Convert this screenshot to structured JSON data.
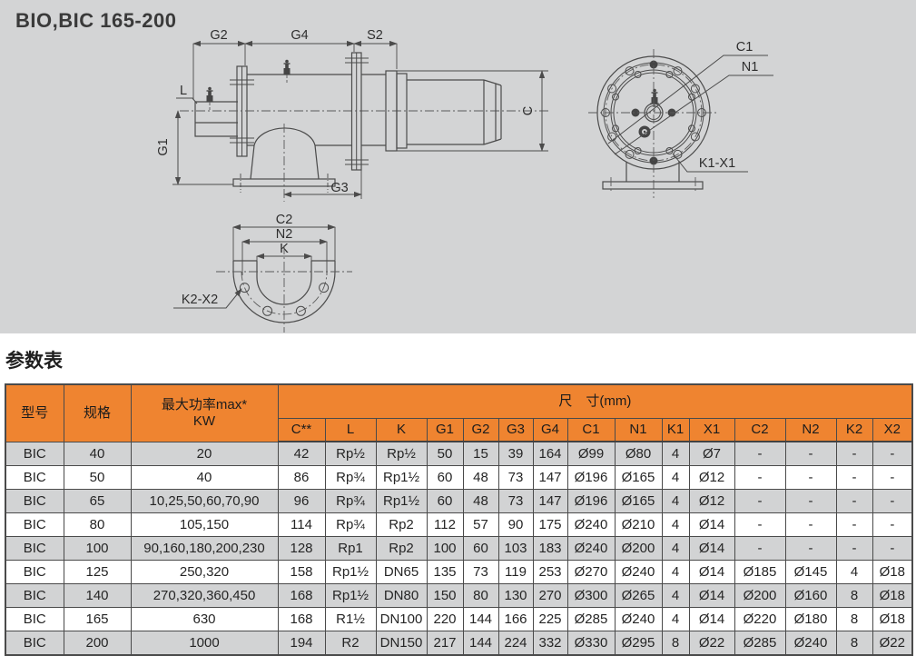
{
  "title": "BIO,BIC 165-200",
  "section_heading": "参数表",
  "diagram": {
    "labels": {
      "g2": "G2",
      "g4": "G4",
      "s2": "S2",
      "l": "L",
      "g1": "G1",
      "g3": "G3",
      "c": "C",
      "c1": "C1",
      "n1": "N1",
      "k1x1": "K1-X1",
      "c2": "C2",
      "n2": "N2",
      "k": "K",
      "k2x2": "K2-X2"
    }
  },
  "table": {
    "headers": {
      "model": "型号",
      "spec": "规格",
      "power_line1": "最大功率max*",
      "power_line2": "KW",
      "dims_group": "尺　寸(mm)",
      "dims": [
        "C**",
        "L",
        "K",
        "G1",
        "G2",
        "G3",
        "G4",
        "C1",
        "N1",
        "K1",
        "X1",
        "C2",
        "N2",
        "K2",
        "X2"
      ]
    },
    "rows": [
      {
        "model": "BIC",
        "spec": "40",
        "power": "20",
        "dims": [
          "42",
          "Rp½",
          "Rp½",
          "50",
          "15",
          "39",
          "164",
          "Ø99",
          "Ø80",
          "4",
          "Ø7",
          "-",
          "-",
          "-",
          "-"
        ]
      },
      {
        "model": "BIC",
        "spec": "50",
        "power": "40",
        "dims": [
          "86",
          "Rp¾",
          "Rp1½",
          "60",
          "48",
          "73",
          "147",
          "Ø196",
          "Ø165",
          "4",
          "Ø12",
          "-",
          "-",
          "-",
          "-"
        ]
      },
      {
        "model": "BIC",
        "spec": "65",
        "power": "10,25,50,60,70,90",
        "dims": [
          "96",
          "Rp¾",
          "Rp1½",
          "60",
          "48",
          "73",
          "147",
          "Ø196",
          "Ø165",
          "4",
          "Ø12",
          "-",
          "-",
          "-",
          "-"
        ]
      },
      {
        "model": "BIC",
        "spec": "80",
        "power": "105,150",
        "dims": [
          "114",
          "Rp¾",
          "Rp2",
          "112",
          "57",
          "90",
          "175",
          "Ø240",
          "Ø210",
          "4",
          "Ø14",
          "-",
          "-",
          "-",
          "-"
        ]
      },
      {
        "model": "BIC",
        "spec": "100",
        "power": "90,160,180,200,230",
        "dims": [
          "128",
          "Rp1",
          "Rp2",
          "100",
          "60",
          "103",
          "183",
          "Ø240",
          "Ø200",
          "4",
          "Ø14",
          "-",
          "-",
          "-",
          "-"
        ]
      },
      {
        "model": "BIC",
        "spec": "125",
        "power": "250,320",
        "dims": [
          "158",
          "Rp1½",
          "DN65",
          "135",
          "73",
          "119",
          "253",
          "Ø270",
          "Ø240",
          "4",
          "Ø14",
          "Ø185",
          "Ø145",
          "4",
          "Ø18"
        ]
      },
      {
        "model": "BIC",
        "spec": "140",
        "power": "270,320,360,450",
        "dims": [
          "168",
          "Rp1½",
          "DN80",
          "150",
          "80",
          "130",
          "270",
          "Ø300",
          "Ø265",
          "4",
          "Ø14",
          "Ø200",
          "Ø160",
          "8",
          "Ø18"
        ]
      },
      {
        "model": "BIC",
        "spec": "165",
        "power": "630",
        "dims": [
          "168",
          "R1½",
          "DN100",
          "220",
          "144",
          "166",
          "225",
          "Ø285",
          "Ø240",
          "4",
          "Ø14",
          "Ø220",
          "Ø180",
          "8",
          "Ø18"
        ]
      },
      {
        "model": "BIC",
        "spec": "200",
        "power": "1000",
        "dims": [
          "194",
          "R2",
          "DN150",
          "217",
          "144",
          "224",
          "332",
          "Ø330",
          "Ø295",
          "8",
          "Ø22",
          "Ø285",
          "Ø240",
          "8",
          "Ø22"
        ]
      }
    ]
  },
  "colors": {
    "header_orange": "#EF8430",
    "row_gray": "#D2D3D4",
    "row_white": "#FFFFFF",
    "panel_gray": "#D3D4D5",
    "line": "#4B4B4B"
  }
}
